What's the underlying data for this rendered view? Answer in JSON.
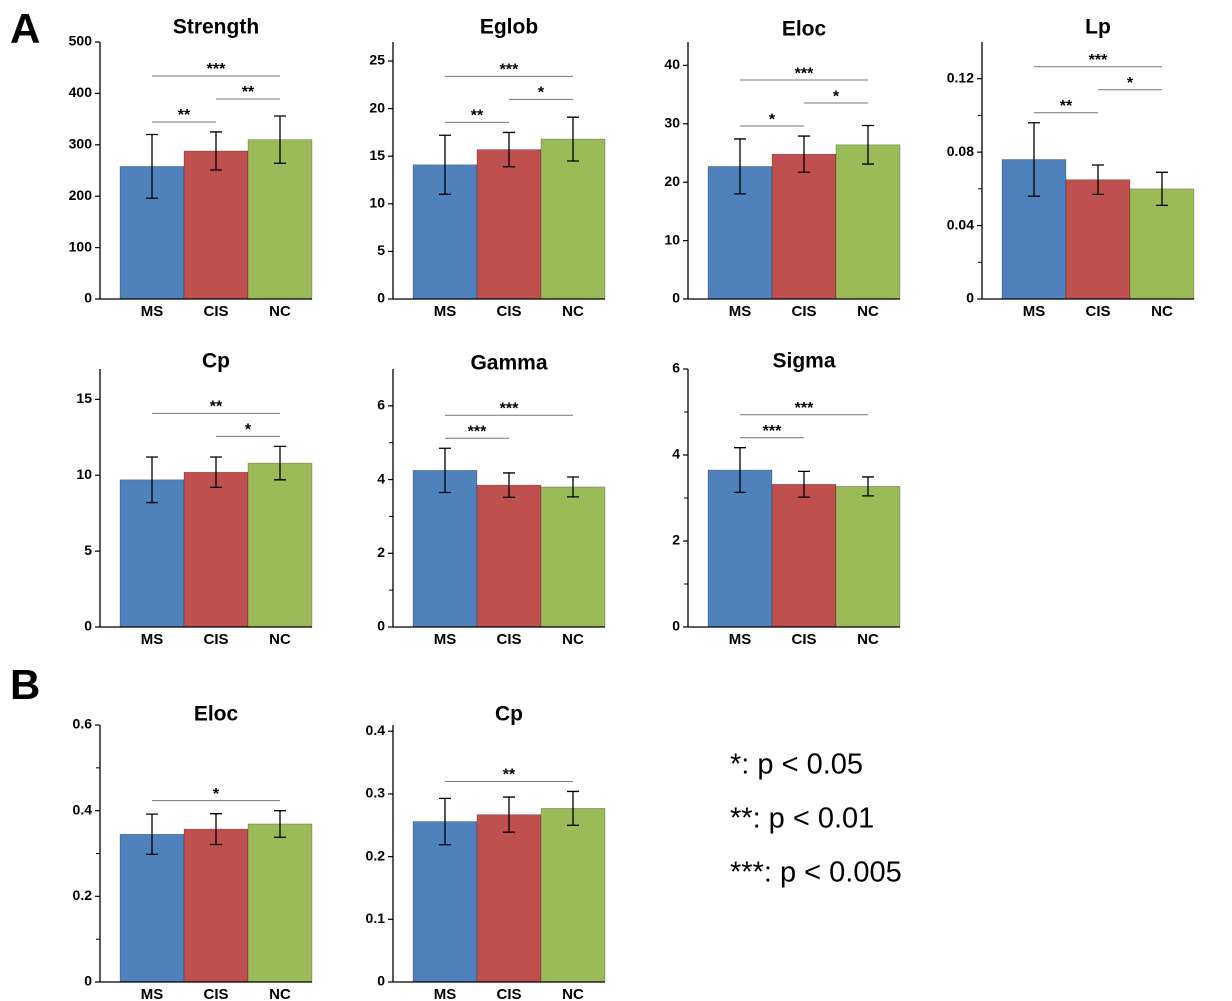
{
  "panels": [
    "A",
    "B"
  ],
  "significance_legend": [
    "*: p < 0.05",
    "**: p < 0.01",
    "***: p < 0.005"
  ],
  "chart_data": [
    {
      "type": "bar",
      "title": "Strength",
      "categories": [
        "MS",
        "CIS",
        "NC"
      ],
      "values": [
        258,
        288,
        310
      ],
      "errors": [
        62,
        37,
        46
      ],
      "colors": [
        "#4f81bd",
        "#c0504d",
        "#9bbb59"
      ],
      "ylim": [
        0,
        500
      ],
      "yticks": [
        0,
        100,
        200,
        300,
        400,
        500
      ],
      "significance": [
        {
          "pair": [
            "MS",
            "CIS"
          ],
          "label": "**"
        },
        {
          "pair": [
            "CIS",
            "NC"
          ],
          "label": "**"
        },
        {
          "pair": [
            "MS",
            "NC"
          ],
          "label": "***"
        }
      ]
    },
    {
      "type": "bar",
      "title": "Eglob",
      "categories": [
        "MS",
        "CIS",
        "NC"
      ],
      "values": [
        14.1,
        15.7,
        16.8
      ],
      "errors": [
        3.1,
        1.8,
        2.3
      ],
      "colors": [
        "#4f81bd",
        "#c0504d",
        "#9bbb59"
      ],
      "ylim": [
        0,
        27
      ],
      "yticks": [
        0,
        5,
        10,
        15,
        20,
        25
      ],
      "significance": [
        {
          "pair": [
            "MS",
            "CIS"
          ],
          "label": "**"
        },
        {
          "pair": [
            "CIS",
            "NC"
          ],
          "label": "*"
        },
        {
          "pair": [
            "MS",
            "NC"
          ],
          "label": "***"
        }
      ]
    },
    {
      "type": "bar",
      "title": "Eloc",
      "categories": [
        "MS",
        "CIS",
        "NC"
      ],
      "values": [
        22.7,
        24.8,
        26.4
      ],
      "errors": [
        4.7,
        3.1,
        3.3
      ],
      "colors": [
        "#4f81bd",
        "#c0504d",
        "#9bbb59"
      ],
      "ylim": [
        0,
        44
      ],
      "yticks": [
        0,
        10,
        20,
        30,
        40
      ],
      "significance": [
        {
          "pair": [
            "MS",
            "CIS"
          ],
          "label": "*"
        },
        {
          "pair": [
            "CIS",
            "NC"
          ],
          "label": "*"
        },
        {
          "pair": [
            "MS",
            "NC"
          ],
          "label": "***"
        }
      ]
    },
    {
      "type": "bar",
      "title": "Lp",
      "categories": [
        "MS",
        "CIS",
        "NC"
      ],
      "values": [
        0.076,
        0.065,
        0.06
      ],
      "errors": [
        0.02,
        0.008,
        0.009
      ],
      "colors": [
        "#4f81bd",
        "#c0504d",
        "#9bbb59"
      ],
      "ylim": [
        0,
        0.14
      ],
      "yticks": [
        0,
        0.04,
        0.08,
        0.12
      ],
      "minor_yticks": [
        0.02,
        0.06,
        0.1
      ],
      "significance": [
        {
          "pair": [
            "MS",
            "CIS"
          ],
          "label": "**"
        },
        {
          "pair": [
            "CIS",
            "NC"
          ],
          "label": "*"
        },
        {
          "pair": [
            "MS",
            "NC"
          ],
          "label": "***"
        }
      ]
    },
    {
      "type": "bar",
      "title": "Cp",
      "categories": [
        "MS",
        "CIS",
        "NC"
      ],
      "values": [
        9.7,
        10.2,
        10.8
      ],
      "errors": [
        1.5,
        1.0,
        1.1
      ],
      "colors": [
        "#4f81bd",
        "#c0504d",
        "#9bbb59"
      ],
      "ylim": [
        0,
        17
      ],
      "yticks": [
        0,
        5,
        10,
        15
      ],
      "significance": [
        {
          "pair": [
            "CIS",
            "NC"
          ],
          "label": "*"
        },
        {
          "pair": [
            "MS",
            "NC"
          ],
          "label": "**"
        }
      ]
    },
    {
      "type": "bar",
      "title": "Gamma",
      "categories": [
        "MS",
        "CIS",
        "NC"
      ],
      "values": [
        4.25,
        3.85,
        3.8
      ],
      "errors": [
        0.6,
        0.33,
        0.27
      ],
      "colors": [
        "#4f81bd",
        "#c0504d",
        "#9bbb59"
      ],
      "ylim": [
        0,
        7
      ],
      "yticks": [
        0,
        2,
        4,
        6
      ],
      "minor_yticks": [
        1,
        3,
        5
      ],
      "significance": [
        {
          "pair": [
            "MS",
            "CIS"
          ],
          "label": "***"
        },
        {
          "pair": [
            "MS",
            "NC"
          ],
          "label": "***"
        }
      ]
    },
    {
      "type": "bar",
      "title": "Sigma",
      "categories": [
        "MS",
        "CIS",
        "NC"
      ],
      "values": [
        3.65,
        3.32,
        3.27
      ],
      "errors": [
        0.52,
        0.3,
        0.22
      ],
      "colors": [
        "#4f81bd",
        "#c0504d",
        "#9bbb59"
      ],
      "ylim": [
        0,
        6
      ],
      "yticks": [
        0,
        2,
        4,
        6
      ],
      "minor_yticks": [
        1,
        3,
        5
      ],
      "significance": [
        {
          "pair": [
            "MS",
            "CIS"
          ],
          "label": "***"
        },
        {
          "pair": [
            "MS",
            "NC"
          ],
          "label": "***"
        }
      ]
    },
    {
      "type": "bar",
      "title": "Eloc",
      "categories": [
        "MS",
        "CIS",
        "NC"
      ],
      "values": [
        0.345,
        0.357,
        0.369
      ],
      "errors": [
        0.047,
        0.036,
        0.031
      ],
      "colors": [
        "#4f81bd",
        "#c0504d",
        "#9bbb59"
      ],
      "ylim": [
        0,
        0.6
      ],
      "yticks": [
        0,
        0.2,
        0.4,
        0.6
      ],
      "minor_yticks": [
        0.1,
        0.3,
        0.5
      ],
      "significance": [
        {
          "pair": [
            "MS",
            "NC"
          ],
          "label": "*"
        }
      ]
    },
    {
      "type": "bar",
      "title": "Cp",
      "categories": [
        "MS",
        "CIS",
        "NC"
      ],
      "values": [
        0.256,
        0.267,
        0.277
      ],
      "errors": [
        0.037,
        0.028,
        0.027
      ],
      "colors": [
        "#4f81bd",
        "#c0504d",
        "#9bbb59"
      ],
      "ylim": [
        0,
        0.41
      ],
      "yticks": [
        0,
        0.1,
        0.2,
        0.3,
        0.4
      ],
      "significance": [
        {
          "pair": [
            "MS",
            "NC"
          ],
          "label": "**"
        }
      ]
    }
  ]
}
